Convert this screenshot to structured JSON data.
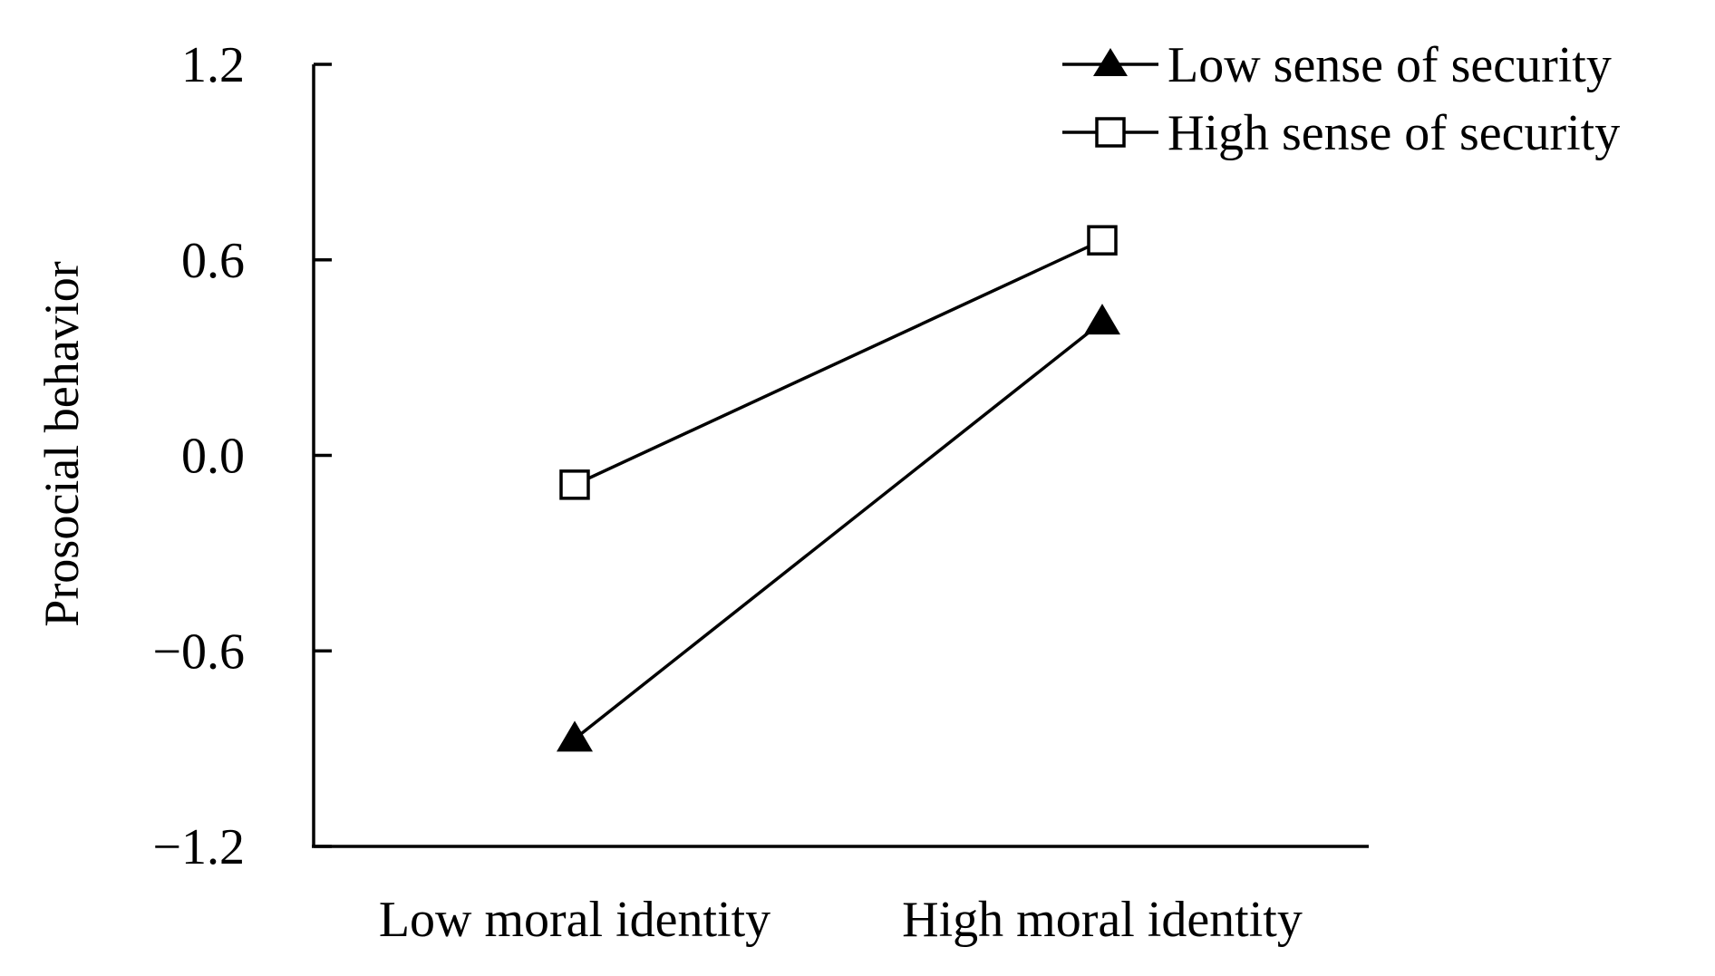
{
  "chart_data": {
    "type": "line",
    "title": "",
    "ylabel": "Prosocial behavior",
    "xlabel": "",
    "categories": [
      "Low moral identity",
      "High moral identity"
    ],
    "ylim": [
      -1.2,
      1.2
    ],
    "yticks": [
      1.2,
      0.6,
      0.0,
      -0.6,
      -1.2
    ],
    "ytick_labels": [
      "1.2",
      "0.6",
      "0.0",
      "−0.6",
      "−1.2"
    ],
    "grid": false,
    "legend_position": "top-right",
    "series": [
      {
        "name": "Low sense of security",
        "marker": "filled-triangle",
        "color": "#000000",
        "values": [
          -0.87,
          0.41
        ]
      },
      {
        "name": "High sense of security",
        "marker": "open-square",
        "color": "#000000",
        "values": [
          -0.09,
          0.66
        ]
      }
    ]
  }
}
